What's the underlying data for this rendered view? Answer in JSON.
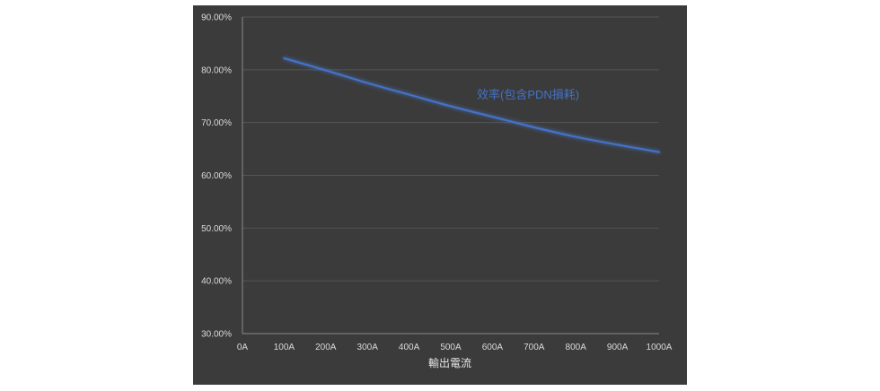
{
  "chart_data": {
    "type": "line",
    "title": "",
    "xlabel": "輸出電流",
    "ylabel": "",
    "categories": [
      "0A",
      "100A",
      "200A",
      "300A",
      "400A",
      "500A",
      "600A",
      "700A",
      "800A",
      "900A",
      "1000A"
    ],
    "y_ticks": [
      "30.00%",
      "40.00%",
      "50.00%",
      "60.00%",
      "70.00%",
      "80.00%",
      "90.00%"
    ],
    "ylim": [
      30,
      90
    ],
    "grid": true,
    "series": [
      {
        "name": "效率(包含PDN損耗)",
        "color": "#4472c4",
        "x": [
          100,
          200,
          300,
          400,
          500,
          600,
          700,
          800,
          900,
          1000
        ],
        "values": [
          82.2,
          79.9,
          77.5,
          75.3,
          73.1,
          71.1,
          69.1,
          67.3,
          65.8,
          64.4
        ]
      }
    ]
  }
}
